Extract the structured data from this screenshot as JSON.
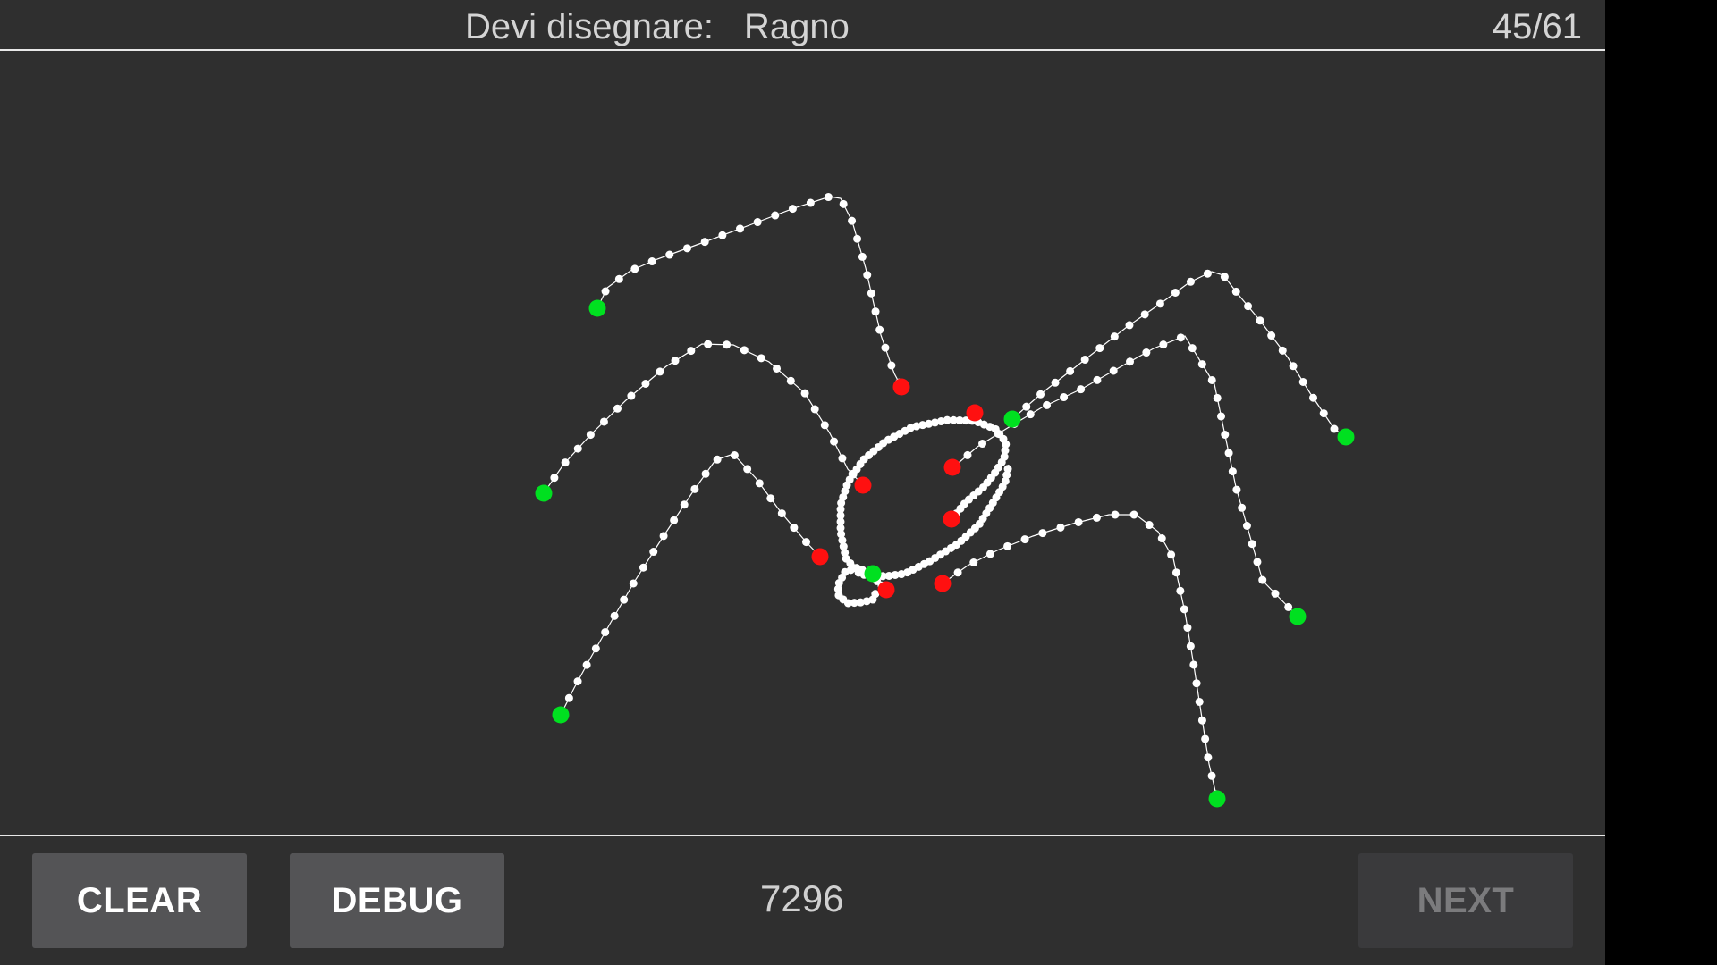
{
  "header": {
    "prompt_label": "Devi disegnare:",
    "word": "Ragno",
    "progress": "45/61"
  },
  "footer": {
    "clear_label": "CLEAR",
    "debug_label": "DEBUG",
    "score": "7296",
    "next_label": "NEXT"
  },
  "colors": {
    "background": "#2f2f2f",
    "stroke": "#ffffff",
    "stroke_start": "#00e020",
    "stroke_end": "#ff1010",
    "button": "#545456",
    "button_disabled": "#3a3a3c"
  }
}
